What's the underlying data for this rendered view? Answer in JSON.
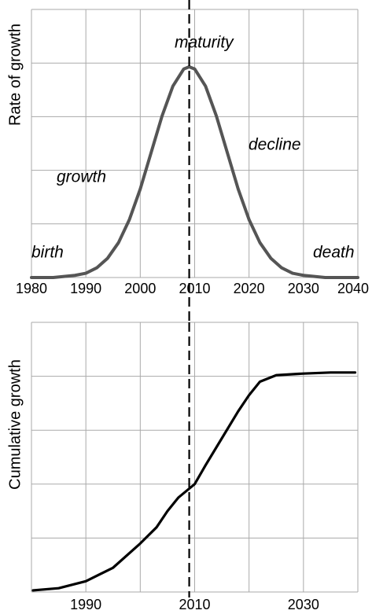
{
  "chart_data": [
    {
      "type": "line",
      "ylabel": "Rate of growth",
      "x": [
        1980,
        1984,
        1988,
        1990,
        1992,
        1994,
        1996,
        1998,
        2000,
        2002,
        2004,
        2006,
        2008,
        2009,
        2010,
        2012,
        2014,
        2016,
        2018,
        2020,
        2022,
        2024,
        2026,
        2028,
        2030,
        2034,
        2040
      ],
      "series": [
        {
          "color": "#555555",
          "values": [
            0,
            0,
            0.04,
            0.08,
            0.18,
            0.36,
            0.65,
            1.08,
            1.65,
            2.33,
            3.01,
            3.57,
            3.89,
            3.93,
            3.89,
            3.57,
            3.01,
            2.33,
            1.65,
            1.08,
            0.65,
            0.36,
            0.18,
            0.08,
            0.04,
            0,
            0
          ]
        }
      ],
      "xlim": [
        1980,
        2040
      ],
      "xticks": [
        1980,
        1990,
        2000,
        2010,
        2020,
        2030,
        2040
      ],
      "ylim": [
        0,
        5
      ],
      "yticks": [
        0,
        1,
        2,
        3,
        4,
        5
      ],
      "grid": true,
      "vline": 2009,
      "annotations": [
        "birth",
        "growth",
        "maturity",
        "decline",
        "death"
      ]
    },
    {
      "type": "line",
      "ylabel": "Cumulative growth",
      "x": [
        1980.3,
        1985,
        1990,
        1995,
        2000,
        2003,
        2005,
        2007,
        2010,
        2012,
        2015,
        2018,
        2020,
        2022,
        2025,
        2030,
        2035,
        2039.5
      ],
      "series": [
        {
          "color": "#000000",
          "values": [
            0.03,
            0.07,
            0.2,
            0.45,
            0.9,
            1.2,
            1.5,
            1.75,
            2.0,
            2.35,
            2.85,
            3.35,
            3.65,
            3.9,
            4.02,
            4.05,
            4.07,
            4.07
          ]
        }
      ],
      "xlim": [
        1980,
        2040
      ],
      "xticks": [
        1990,
        2010,
        2030
      ],
      "xminor": [
        1980,
        2000,
        2020,
        2040
      ],
      "ylim": [
        0,
        5
      ],
      "yticks": [
        0,
        1,
        2,
        3,
        4,
        5
      ],
      "grid": true,
      "vline": 2009
    }
  ]
}
